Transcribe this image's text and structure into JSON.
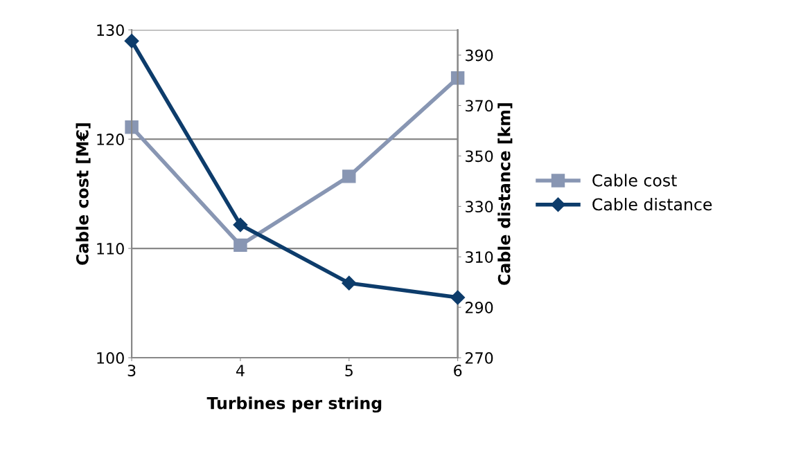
{
  "chart_data": {
    "type": "line",
    "xlabel": "Turbines per string",
    "ylabel": "Cable cost [M€]",
    "y2label": "Cable distance [km]",
    "x": [
      3,
      4,
      5,
      6
    ],
    "xlim": [
      3,
      6
    ],
    "xticks": [
      3,
      4,
      5,
      6
    ],
    "ylim": [
      100,
      130
    ],
    "yticks": [
      100,
      110,
      120,
      130
    ],
    "y2lim": [
      270,
      400
    ],
    "y2ticks": [
      270,
      290,
      310,
      330,
      350,
      370,
      390
    ],
    "grid": "y",
    "legend": "right",
    "series": [
      {
        "name": "Cable cost",
        "color": "#8896b3",
        "marker": "square",
        "values": [
          121.1,
          110.3,
          116.6,
          125.6
        ]
      },
      {
        "name": "Cable distance",
        "color": "#0d3c6b",
        "marker": "diamond",
        "axis": "y2",
        "values": [
          395.6,
          322.7,
          299.6,
          293.9
        ]
      }
    ]
  }
}
